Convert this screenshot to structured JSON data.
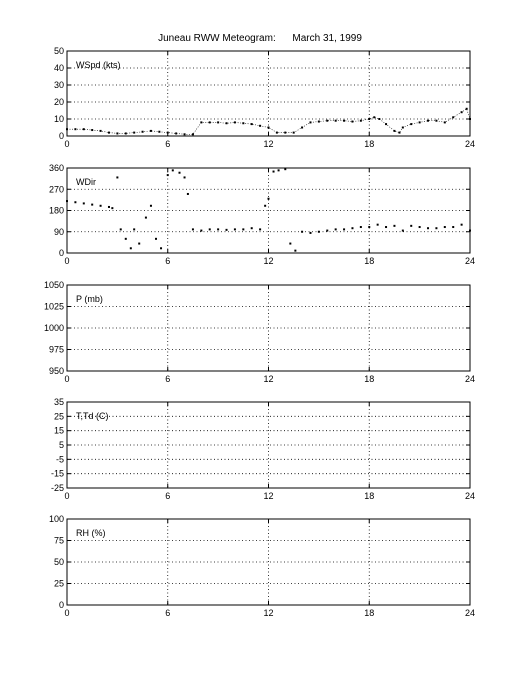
{
  "title": "Juneau RWW Meteogram:      March 31, 1999",
  "chart_data": [
    {
      "type": "scatter",
      "label": "WSpd (kts)",
      "xlim": [
        0,
        24
      ],
      "ylim": [
        0,
        50
      ],
      "xticks": [
        0,
        6,
        12,
        18,
        24
      ],
      "yticks": [
        0,
        10,
        20,
        30,
        40,
        50
      ],
      "grid": true,
      "series": [
        {
          "x": [
            0,
            0.5,
            1,
            1.5,
            2,
            2.5,
            3,
            3.5,
            4,
            4.5,
            5,
            5.5,
            6,
            6.5,
            7,
            7.5,
            8,
            8.5,
            9,
            9.5,
            10,
            10.5,
            11,
            11.5,
            12,
            12.5,
            13,
            13.5,
            14,
            14.5,
            15,
            15.5,
            16,
            16.5,
            17,
            17.5,
            18,
            18.3,
            18.6,
            19,
            19.5,
            19.8,
            20,
            20.5,
            21,
            21.5,
            22,
            22.5,
            23,
            23.5,
            23.8,
            24
          ],
          "y": [
            4,
            4,
            4,
            3.5,
            3,
            2,
            1.5,
            1.5,
            2,
            2.5,
            3,
            2.5,
            2,
            1.5,
            1,
            1,
            8,
            8,
            8,
            7.5,
            8,
            7.5,
            7,
            6,
            5,
            2,
            2,
            2,
            5,
            8,
            8.5,
            9,
            9,
            9,
            8.5,
            9,
            10,
            11,
            10,
            7,
            3,
            2,
            5,
            7,
            8,
            9,
            9,
            8,
            11,
            14,
            16,
            10
          ]
        }
      ]
    },
    {
      "type": "scatter",
      "label": "WDir",
      "xlim": [
        0,
        24
      ],
      "ylim": [
        0,
        360
      ],
      "xticks": [
        0,
        6,
        12,
        18,
        24
      ],
      "yticks": [
        0,
        90,
        180,
        270,
        360
      ],
      "grid": true,
      "series": [
        {
          "x": [
            0,
            0.5,
            1,
            1.5,
            2,
            2.5,
            2.7,
            3,
            3.2,
            3.5,
            3.8,
            4,
            4.3,
            4.7,
            5,
            5.3,
            5.6,
            6,
            6.3,
            6.7,
            7,
            7.2,
            7.5,
            8,
            8.5,
            9,
            9.5,
            10,
            10.5,
            11,
            11.5,
            11.8,
            12,
            12.3,
            12.6,
            13,
            13.3,
            13.6,
            14,
            14.5,
            15,
            15.5,
            16,
            16.5,
            17,
            17.5,
            18,
            18.5,
            19,
            19.5,
            20,
            20.5,
            21,
            21.5,
            22,
            22.5,
            23,
            23.5,
            24
          ],
          "y": [
            220,
            215,
            210,
            205,
            200,
            195,
            190,
            320,
            100,
            60,
            20,
            100,
            40,
            150,
            200,
            60,
            20,
            330,
            350,
            340,
            320,
            250,
            100,
            95,
            100,
            100,
            98,
            100,
            100,
            105,
            100,
            200,
            230,
            345,
            350,
            355,
            40,
            10,
            90,
            85,
            90,
            95,
            100,
            100,
            105,
            110,
            110,
            120,
            110,
            115,
            95,
            115,
            110,
            105,
            105,
            110,
            110,
            120,
            95
          ]
        }
      ]
    },
    {
      "type": "scatter",
      "label": "P (mb)",
      "xlim": [
        0,
        24
      ],
      "ylim": [
        950,
        1050
      ],
      "xticks": [
        0,
        6,
        12,
        18,
        24
      ],
      "yticks": [
        950,
        975,
        1000,
        1025,
        1050
      ],
      "grid": true,
      "series": []
    },
    {
      "type": "scatter",
      "label": "T,Td (C)",
      "xlim": [
        0,
        24
      ],
      "ylim": [
        -25,
        35
      ],
      "xticks": [
        0,
        6,
        12,
        18,
        24
      ],
      "yticks": [
        -25,
        -15,
        -5,
        5,
        15,
        25,
        35
      ],
      "grid": true,
      "series": []
    },
    {
      "type": "scatter",
      "label": "RH (%)",
      "xlim": [
        0,
        24
      ],
      "ylim": [
        0,
        100
      ],
      "xticks": [
        0,
        6,
        12,
        18,
        24
      ],
      "yticks": [
        0,
        25,
        50,
        75,
        100
      ],
      "grid": true,
      "series": []
    }
  ]
}
